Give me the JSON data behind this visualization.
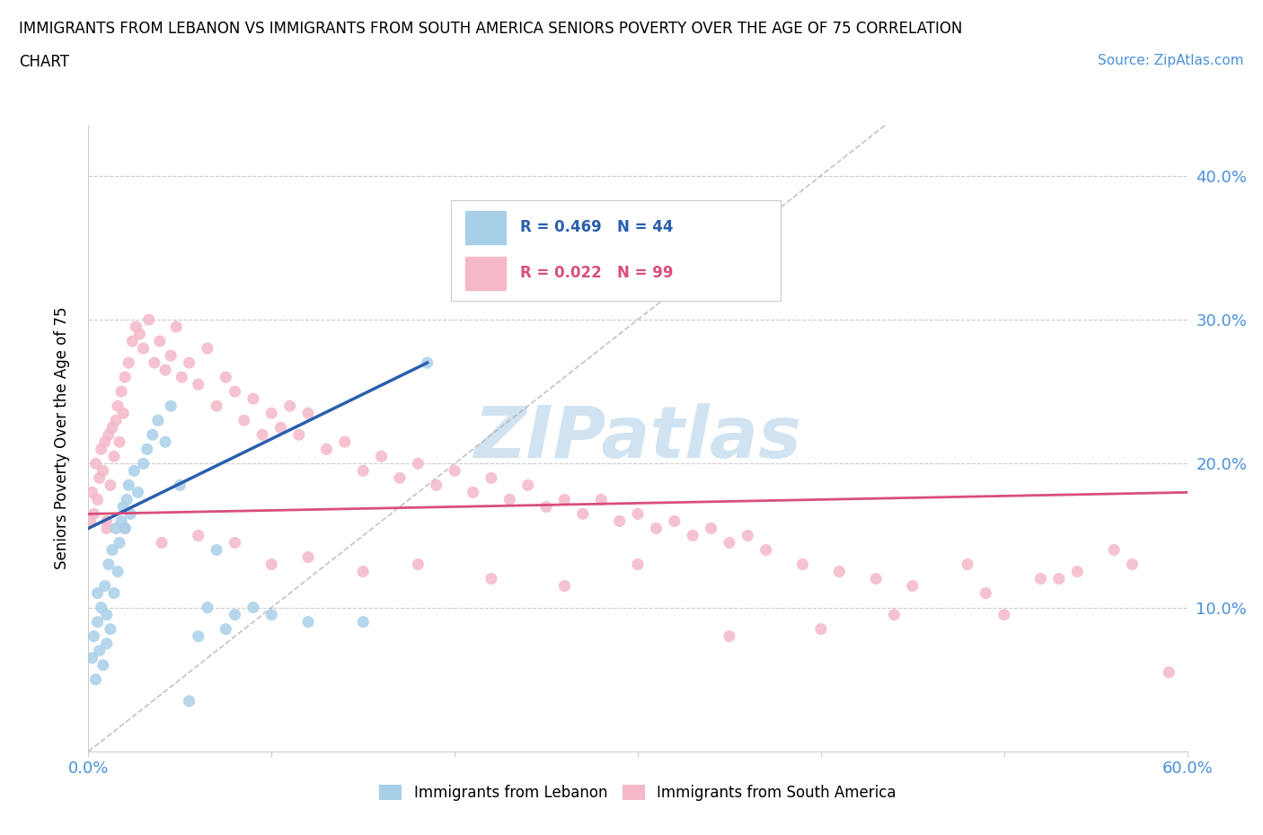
{
  "title_line1": "IMMIGRANTS FROM LEBANON VS IMMIGRANTS FROM SOUTH AMERICA SENIORS POVERTY OVER THE AGE OF 75 CORRELATION",
  "title_line2": "CHART",
  "source_text": "Source: ZipAtlas.com",
  "ylabel": "Seniors Poverty Over the Age of 75",
  "xlim": [
    0.0,
    0.6
  ],
  "ylim": [
    0.0,
    0.435
  ],
  "legend_blue_r": "R = 0.469",
  "legend_blue_n": "N = 44",
  "legend_pink_r": "R = 0.022",
  "legend_pink_n": "N = 99",
  "blue_color": "#a8cfe8",
  "pink_color": "#f4b8c8",
  "blue_line_color": "#2b5fad",
  "pink_line_color": "#d94f7a",
  "watermark": "ZIPatlas",
  "watermark_color": "#cce0f0",
  "blue_trend": [
    0.0,
    0.155,
    0.185,
    0.27
  ],
  "pink_trend": [
    0.0,
    0.165,
    0.6,
    0.18
  ],
  "gray_diag": [
    0.0,
    0.0,
    0.435,
    0.435
  ],
  "blue_points_x": [
    0.002,
    0.003,
    0.004,
    0.005,
    0.005,
    0.006,
    0.007,
    0.008,
    0.009,
    0.01,
    0.01,
    0.011,
    0.012,
    0.013,
    0.014,
    0.015,
    0.016,
    0.017,
    0.018,
    0.019,
    0.02,
    0.021,
    0.022,
    0.023,
    0.025,
    0.027,
    0.03,
    0.032,
    0.035,
    0.038,
    0.042,
    0.045,
    0.05,
    0.055,
    0.06,
    0.065,
    0.07,
    0.075,
    0.08,
    0.09,
    0.1,
    0.12,
    0.15,
    0.185
  ],
  "blue_points_y": [
    0.065,
    0.08,
    0.05,
    0.09,
    0.11,
    0.07,
    0.1,
    0.06,
    0.115,
    0.075,
    0.095,
    0.13,
    0.085,
    0.14,
    0.11,
    0.155,
    0.125,
    0.145,
    0.16,
    0.17,
    0.155,
    0.175,
    0.185,
    0.165,
    0.195,
    0.18,
    0.2,
    0.21,
    0.22,
    0.23,
    0.215,
    0.24,
    0.185,
    0.035,
    0.08,
    0.1,
    0.14,
    0.085,
    0.095,
    0.1,
    0.095,
    0.09,
    0.09,
    0.27
  ],
  "pink_points_x": [
    0.001,
    0.002,
    0.003,
    0.004,
    0.005,
    0.006,
    0.007,
    0.008,
    0.009,
    0.01,
    0.011,
    0.012,
    0.013,
    0.014,
    0.015,
    0.016,
    0.017,
    0.018,
    0.019,
    0.02,
    0.022,
    0.024,
    0.026,
    0.028,
    0.03,
    0.033,
    0.036,
    0.039,
    0.042,
    0.045,
    0.048,
    0.051,
    0.055,
    0.06,
    0.065,
    0.07,
    0.075,
    0.08,
    0.085,
    0.09,
    0.095,
    0.1,
    0.105,
    0.11,
    0.115,
    0.12,
    0.13,
    0.14,
    0.15,
    0.16,
    0.17,
    0.18,
    0.19,
    0.2,
    0.21,
    0.22,
    0.23,
    0.24,
    0.25,
    0.26,
    0.27,
    0.28,
    0.29,
    0.3,
    0.31,
    0.32,
    0.33,
    0.34,
    0.35,
    0.36,
    0.37,
    0.39,
    0.41,
    0.43,
    0.45,
    0.48,
    0.5,
    0.52,
    0.54,
    0.56,
    0.01,
    0.02,
    0.04,
    0.06,
    0.08,
    0.1,
    0.12,
    0.15,
    0.18,
    0.22,
    0.26,
    0.3,
    0.35,
    0.4,
    0.44,
    0.49,
    0.53,
    0.57,
    0.59
  ],
  "pink_points_y": [
    0.16,
    0.18,
    0.165,
    0.2,
    0.175,
    0.19,
    0.21,
    0.195,
    0.215,
    0.155,
    0.22,
    0.185,
    0.225,
    0.205,
    0.23,
    0.24,
    0.215,
    0.25,
    0.235,
    0.26,
    0.27,
    0.285,
    0.295,
    0.29,
    0.28,
    0.3,
    0.27,
    0.285,
    0.265,
    0.275,
    0.295,
    0.26,
    0.27,
    0.255,
    0.28,
    0.24,
    0.26,
    0.25,
    0.23,
    0.245,
    0.22,
    0.235,
    0.225,
    0.24,
    0.22,
    0.235,
    0.21,
    0.215,
    0.195,
    0.205,
    0.19,
    0.2,
    0.185,
    0.195,
    0.18,
    0.19,
    0.175,
    0.185,
    0.17,
    0.175,
    0.165,
    0.175,
    0.16,
    0.165,
    0.155,
    0.16,
    0.15,
    0.155,
    0.145,
    0.15,
    0.14,
    0.13,
    0.125,
    0.12,
    0.115,
    0.13,
    0.095,
    0.12,
    0.125,
    0.14,
    0.16,
    0.155,
    0.145,
    0.15,
    0.145,
    0.13,
    0.135,
    0.125,
    0.13,
    0.12,
    0.115,
    0.13,
    0.08,
    0.085,
    0.095,
    0.11,
    0.12,
    0.13,
    0.055
  ]
}
